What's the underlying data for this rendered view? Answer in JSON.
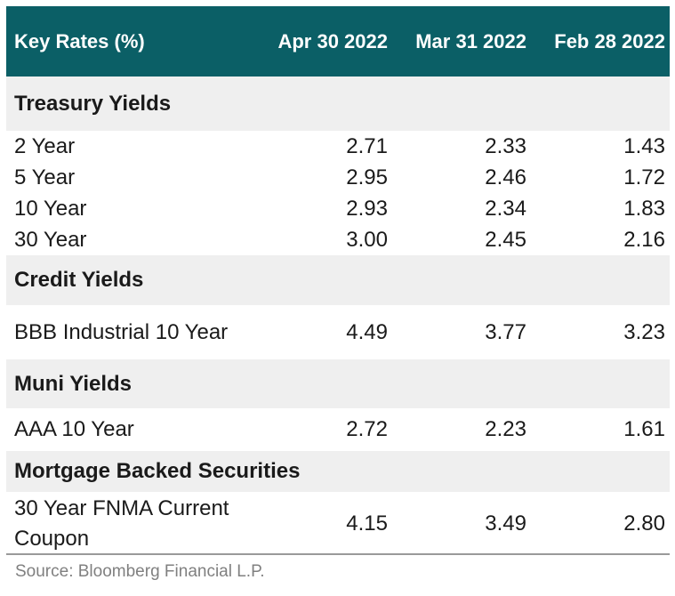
{
  "header": {
    "label": "Key Rates (%)",
    "col1": "Apr 30 2022",
    "col2": "Mar 31 2022",
    "col3": "Feb 28 2022"
  },
  "sections": [
    {
      "title": "Treasury Yields",
      "rows": [
        {
          "label": "2 Year",
          "v1": "2.71",
          "v2": "2.33",
          "v3": "1.43"
        },
        {
          "label": "5 Year",
          "v1": "2.95",
          "v2": "2.46",
          "v3": "1.72"
        },
        {
          "label": "10 Year",
          "v1": "2.93",
          "v2": "2.34",
          "v3": "1.83"
        },
        {
          "label": "30 Year",
          "v1": "3.00",
          "v2": "2.45",
          "v3": "2.16"
        }
      ]
    },
    {
      "title": "Credit Yields",
      "rows": [
        {
          "label": "BBB Industrial 10 Year",
          "v1": "4.49",
          "v2": "3.77",
          "v3": "3.23"
        }
      ]
    },
    {
      "title": "Muni Yields",
      "rows": [
        {
          "label": "AAA 10 Year",
          "v1": "2.72",
          "v2": "2.23",
          "v3": "1.61"
        }
      ]
    },
    {
      "title": "Mortgage Backed Securities",
      "rows": [
        {
          "label": "30 Year FNMA Current Coupon",
          "v1": "4.15",
          "v2": "3.49",
          "v3": "2.80"
        }
      ]
    }
  ],
  "footer": {
    "source": "Source: Bloomberg Financial L.P."
  },
  "colors": {
    "header_bg": "#0b5f66",
    "section_bg": "#efefef",
    "source_text": "#808080"
  }
}
